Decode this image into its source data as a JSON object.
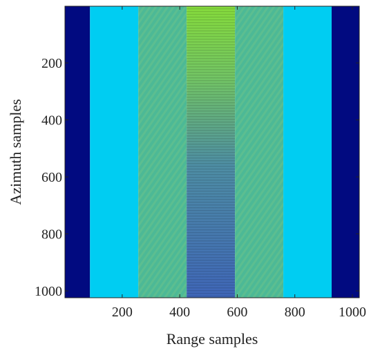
{
  "chart_data": {
    "type": "heatmap",
    "title": "",
    "xlabel": "Range samples",
    "ylabel": "Azimuth samples",
    "xlim": [
      1,
      1024
    ],
    "ylim": [
      1,
      1024
    ],
    "y_direction": "reversed",
    "grid": false,
    "legend": "none",
    "x_ticks": [
      200,
      400,
      600,
      800,
      1000
    ],
    "y_ticks": [
      200,
      400,
      600,
      800,
      1000
    ],
    "x_tick_labels": [
      "200",
      "400",
      "600",
      "800",
      "1000"
    ],
    "y_tick_labels": [
      "200",
      "400",
      "600",
      "800",
      "1000"
    ],
    "bands": [
      {
        "x_start": 1,
        "x_end": 88,
        "color": "#010a80",
        "pattern": "solid"
      },
      {
        "x_start": 88,
        "x_end": 256,
        "color": "#00cdf2",
        "pattern": "solid"
      },
      {
        "x_start": 256,
        "x_end": 424,
        "color": "#4cb996",
        "pattern": "fringe"
      },
      {
        "x_start": 424,
        "x_end": 592,
        "color": "#79cd5c",
        "pattern": "gradient"
      },
      {
        "x_start": 592,
        "x_end": 760,
        "color": "#4cb996",
        "pattern": "fringe"
      },
      {
        "x_start": 760,
        "x_end": 928,
        "color": "#00cdf2",
        "pattern": "solid"
      },
      {
        "x_start": 928,
        "x_end": 1024,
        "color": "#010a80",
        "pattern": "solid"
      }
    ],
    "center_gradient": [
      {
        "y": 1,
        "color": "#86dc3c"
      },
      {
        "y": 260,
        "color": "#72c466"
      },
      {
        "y": 560,
        "color": "#4e8ea4"
      },
      {
        "y": 1024,
        "color": "#3f66b8"
      }
    ]
  }
}
